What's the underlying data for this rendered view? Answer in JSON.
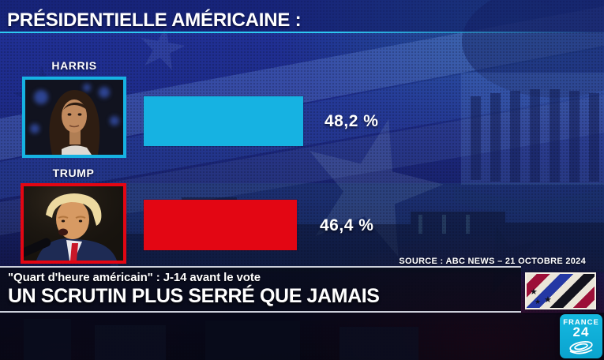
{
  "header": {
    "title": "PRÉSIDENTIELLE AMÉRICAINE :"
  },
  "chart_data": {
    "type": "bar",
    "orientation": "horizontal",
    "title": "PRÉSIDENTIELLE AMÉRICAINE :",
    "categories": [
      "HARRIS",
      "TRUMP"
    ],
    "values": [
      48.2,
      46.4
    ],
    "value_labels": [
      "48,2 %",
      "46,4 %"
    ],
    "colors": [
      "#16b2e2",
      "#e30613"
    ],
    "unit": "%",
    "xlim": [
      0,
      100
    ],
    "grid": false,
    "legend": "none",
    "source": "SOURCE : ABC NEWS – 21 OCTOBRE 2024"
  },
  "banner": {
    "kicker": "\"Quart d'heure américain\" : J-14 avant le vote",
    "headline": "UN SCRUTIN PLUS SERRÉ QUE JAMAIS"
  },
  "branding": {
    "channel": "FRANCE",
    "channel_number": "24",
    "flag_icon": "us-flag-diagonal-stripes",
    "globe_icon": "france24-swirl-globe"
  }
}
